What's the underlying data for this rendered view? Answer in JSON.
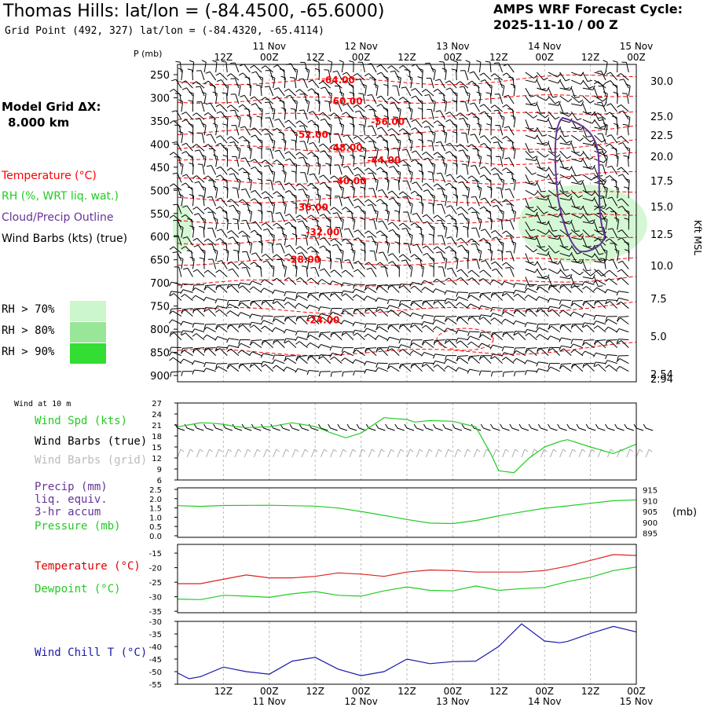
{
  "header": {
    "title": "Thomas Hills:  lat/lon = (-84.4500, -65.6000)",
    "grid_point": "Grid Point (492, 327) lat/lon = (-84.4320, -65.4114)",
    "cycle_line1": "AMPS WRF Forecast Cycle:",
    "cycle_line2": "2025-11-10 / 00  Z",
    "model_line1": "Model Grid ΔX:",
    "model_line2": "8.000 km"
  },
  "legend": {
    "temperature": "Temperature (°C)",
    "rh": "RH (%, WRT liq. wat.)",
    "cloud": "Cloud/Precip Outline",
    "wind": "Wind Barbs (kts) (true)",
    "rh70": "RH > 70%",
    "rh80": "RH > 80%",
    "rh90": "RH > 90%",
    "wind10m": "Wind at 10 m",
    "wind_spd": "Wind Spd (kts)",
    "wind_barbs_true": "Wind Barbs (true)",
    "wind_barbs_grid": "Wind Barbs (grid)",
    "precip1": "Precip (mm)",
    "precip2": "liq. equiv.",
    "precip3": "3-hr accum",
    "pressure": "Pressure (mb)",
    "temperature2": "Temperature (°C)",
    "dewpoint": "Dewpoint (°C)",
    "windchill": "Wind Chill T (°C)"
  },
  "colors": {
    "temp": "#ff0000",
    "green": "#22cc22",
    "cloud": "#663399",
    "windchill": "#1a1aaa",
    "rh70": "#ccf7cc",
    "rh80": "#99e699",
    "rh90": "#33dd33",
    "grid": "#bbbbbb",
    "barb_grid": "#aaaaaa"
  },
  "time_axis": {
    "top_hours": [
      "12Z",
      "00Z",
      "12Z",
      "00Z",
      "12Z",
      "00Z",
      "12Z",
      "00Z",
      "12Z",
      "00Z"
    ],
    "top_dates": [
      "11 Nov",
      "12 Nov",
      "13 Nov",
      "14 Nov",
      "15 Nov"
    ],
    "bottom_hours": [
      "12Z",
      "00Z",
      "12Z",
      "00Z",
      "12Z",
      "00Z",
      "12Z",
      "00Z",
      "12Z",
      "00Z"
    ],
    "bottom_dates": [
      "11 Nov",
      "12 Nov",
      "13 Nov",
      "14 Nov",
      "15 Nov"
    ],
    "p_label": "P (mb)",
    "alt_unit": "Kft MSL",
    "mb_unit": "(mb)"
  },
  "chart_data": [
    {
      "id": "cross_section",
      "type": "contour",
      "title": "Vertical cross-section",
      "ylabel": "P (mb)",
      "y_ticks": [
        250,
        300,
        350,
        400,
        450,
        500,
        550,
        600,
        650,
        700,
        750,
        800,
        850,
        900
      ],
      "ylim": [
        900,
        230
      ],
      "x_range_hours": [
        0,
        120
      ],
      "alt_ticks": [
        "30.0",
        "25.0",
        "22.5",
        "20.0",
        "17.5",
        "15.0",
        "12.5",
        "10.0",
        "7.5",
        "5.0",
        "2.94"
      ],
      "alt_extra": "2.54",
      "temp_contour_labels": [
        {
          "label": "-64.00",
          "t": 42,
          "p": 262
        },
        {
          "label": "-60.00",
          "t": 44,
          "p": 308
        },
        {
          "label": "-56.00",
          "t": 55,
          "p": 352
        },
        {
          "label": "-52.00",
          "t": 35,
          "p": 380
        },
        {
          "label": "-48.00",
          "t": 44,
          "p": 408
        },
        {
          "label": "-44.00",
          "t": 54,
          "p": 435
        },
        {
          "label": "-40.00",
          "t": 45,
          "p": 480
        },
        {
          "label": "-36.00",
          "t": 35,
          "p": 537
        },
        {
          "label": "-32.00",
          "t": 38,
          "p": 590
        },
        {
          "label": "-28.00",
          "t": 33,
          "p": 650
        },
        {
          "label": "-24.00",
          "t": 38,
          "p": 780
        }
      ],
      "temp_isotherm_levels": [
        265,
        305,
        340,
        375,
        410,
        440,
        480,
        520,
        565,
        610,
        655,
        700,
        760,
        850
      ]
    },
    {
      "id": "wind10m",
      "type": "line",
      "ylabel": "Wind Spd (kts)",
      "ylim": [
        6,
        27
      ],
      "y_ticks": [
        6,
        9,
        12,
        15,
        18,
        21,
        24,
        27
      ],
      "x": [
        0,
        6,
        9,
        12,
        15,
        18,
        24,
        30,
        36,
        40,
        44,
        48,
        54,
        60,
        62,
        66,
        72,
        78,
        82,
        84,
        88,
        90,
        92,
        96,
        100,
        102,
        108,
        114,
        120
      ],
      "values": [
        20.5,
        21.6,
        21.5,
        21.2,
        20.6,
        20.3,
        20.5,
        21.6,
        20.6,
        18.9,
        17.5,
        18.8,
        23.0,
        22.5,
        21.8,
        22.2,
        22.0,
        20.5,
        13.0,
        8.5,
        8.0,
        10.0,
        12.0,
        15.0,
        16.5,
        17.0,
        15.0,
        13.2,
        15.8
      ]
    },
    {
      "id": "pressure",
      "type": "line",
      "ylabel": "Pressure (mb)",
      "y_ticks_left": [
        0.0,
        0.5,
        1.0,
        1.5,
        2.0,
        2.5
      ],
      "y_ticks_right": [
        895,
        900,
        905,
        910,
        915
      ],
      "ylim_right": [
        893,
        916
      ],
      "x": [
        0,
        6,
        12,
        24,
        36,
        42,
        48,
        54,
        60,
        66,
        72,
        78,
        84,
        90,
        96,
        102,
        108,
        114,
        120
      ],
      "values": [
        907.7,
        907.4,
        907.8,
        907.9,
        907.5,
        906.6,
        905.0,
        903.2,
        901.3,
        899.6,
        899.4,
        900.8,
        903.0,
        904.8,
        906.5,
        907.6,
        908.8,
        910.0,
        910.4
      ]
    },
    {
      "id": "temperature",
      "type": "line",
      "ylabel": "Temperature (°C)",
      "y_ticks": [
        -35,
        -30,
        -25,
        -20,
        -15
      ],
      "ylim": [
        -35.5,
        -12
      ],
      "series": [
        {
          "name": "Temperature",
          "x": [
            0,
            6,
            12,
            18,
            24,
            30,
            36,
            42,
            48,
            54,
            60,
            66,
            72,
            78,
            84,
            90,
            96,
            102,
            108,
            114,
            120
          ],
          "values": [
            -25.5,
            -25.5,
            -24.0,
            -22.5,
            -23.5,
            -23.5,
            -23.0,
            -21.8,
            -22.2,
            -23.0,
            -21.5,
            -20.8,
            -21.0,
            -21.5,
            -21.5,
            -21.5,
            -21.0,
            -19.5,
            -17.5,
            -15.5,
            -15.8
          ]
        },
        {
          "name": "Dewpoint",
          "x": [
            0,
            6,
            12,
            18,
            24,
            30,
            36,
            42,
            48,
            54,
            60,
            66,
            72,
            78,
            84,
            90,
            96,
            102,
            108,
            114,
            120
          ],
          "values": [
            -30.8,
            -31.0,
            -29.5,
            -29.8,
            -30.2,
            -29.0,
            -28.2,
            -29.5,
            -29.8,
            -28.0,
            -26.6,
            -27.8,
            -28.0,
            -26.3,
            -27.8,
            -27.2,
            -26.8,
            -24.8,
            -23.3,
            -21.0,
            -19.8
          ]
        }
      ]
    },
    {
      "id": "windchill",
      "type": "line",
      "ylabel": "Wind Chill T (°C)",
      "y_ticks": [
        -55,
        -50,
        -45,
        -40,
        -35,
        -30
      ],
      "ylim": [
        -55,
        -30
      ],
      "x": [
        0,
        3,
        6,
        12,
        18,
        24,
        30,
        36,
        42,
        48,
        54,
        60,
        66,
        72,
        78,
        84,
        90,
        96,
        100,
        102,
        108,
        114,
        120
      ],
      "values": [
        -50.5,
        -52.8,
        -52.0,
        -48.2,
        -50.0,
        -51.0,
        -45.8,
        -44.3,
        -49.0,
        -51.6,
        -50.0,
        -45.0,
        -46.8,
        -46.0,
        -45.8,
        -40.0,
        -31.0,
        -37.8,
        -38.5,
        -38.0,
        -34.8,
        -32.0,
        -34.2
      ]
    }
  ]
}
